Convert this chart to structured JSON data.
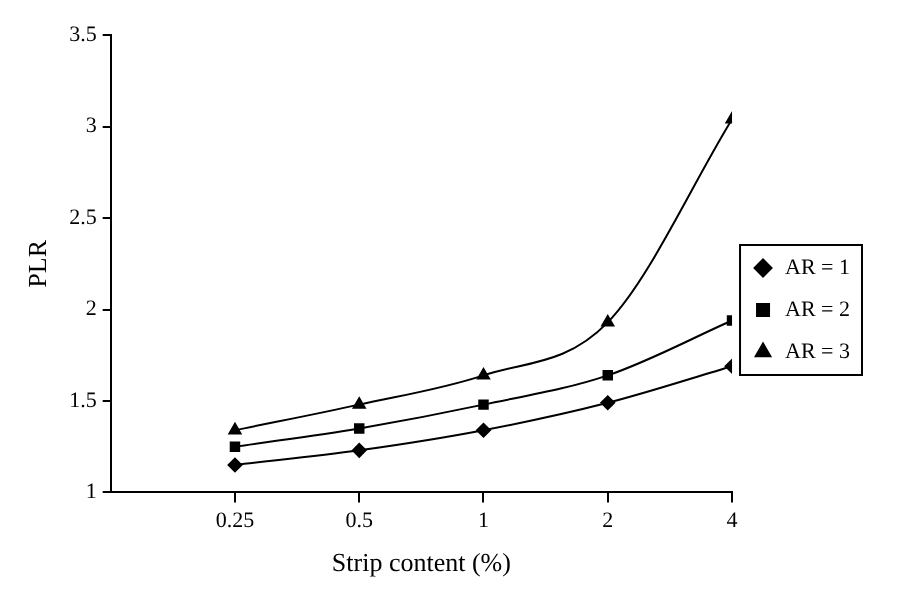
{
  "chart_data": {
    "type": "line",
    "xlabel": "Strip content (%)",
    "ylabel": "PLR",
    "log": "x",
    "x": [
      0.25,
      0.5,
      1,
      2,
      4
    ],
    "xlim": [
      0.125,
      4
    ],
    "xticks": [
      0.25,
      0.5,
      1,
      2,
      4
    ],
    "ylim": [
      1,
      3.5
    ],
    "yticks": [
      1,
      1.5,
      2,
      2.5,
      3,
      3.5
    ],
    "grid": false,
    "legend": "right",
    "line_style": "solid",
    "series": [
      {
        "name": "AR = 1",
        "color": "#000000",
        "marker": "diamond",
        "values": [
          1.15,
          1.23,
          1.34,
          1.49,
          1.69
        ]
      },
      {
        "name": "AR = 2",
        "color": "#000000",
        "marker": "square",
        "values": [
          1.25,
          1.35,
          1.48,
          1.64,
          1.94
        ]
      },
      {
        "name": "AR = 3",
        "color": "#000000",
        "marker": "triangle",
        "values": [
          1.34,
          1.48,
          1.64,
          1.93,
          3.04
        ]
      }
    ]
  }
}
